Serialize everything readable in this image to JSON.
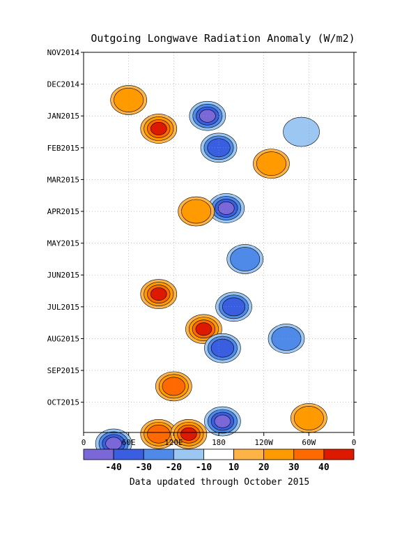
{
  "chart_data": {
    "type": "heatmap",
    "title": "Outgoing Longwave Radiation Anomaly (W/m2)",
    "footer": "Data updated through October 2015",
    "x_ticks": [
      "0",
      "60E",
      "120E",
      "180",
      "120W",
      "60W",
      "0"
    ],
    "y_ticks": [
      "NOV2014",
      "DEC2014",
      "JAN2015",
      "FEB2015",
      "MAR2015",
      "APR2015",
      "MAY2015",
      "JUN2015",
      "JUL2015",
      "AUG2015",
      "SEP2015",
      "OCT2015"
    ],
    "colorbar": {
      "labels": [
        "-40",
        "-30",
        "-20",
        "-10",
        "10",
        "20",
        "30",
        "40"
      ],
      "colors": [
        "#7b68d8",
        "#3a5ee0",
        "#4f8ae8",
        "#9cc7f2",
        "#ffffff",
        "#ffb347",
        "#ff9a00",
        "#ff6a00",
        "#dd1a00"
      ]
    },
    "features": [
      {
        "lon": 100,
        "month": 2.4,
        "value": 40
      },
      {
        "lon": 60,
        "month": 1.5,
        "value": 20
      },
      {
        "lon": 165,
        "month": 2.0,
        "value": -40
      },
      {
        "lon": 180,
        "month": 3.0,
        "value": -30
      },
      {
        "lon": 190,
        "month": 4.9,
        "value": -40
      },
      {
        "lon": 150,
        "month": 5.0,
        "value": 25
      },
      {
        "lon": 100,
        "month": 7.6,
        "value": 40
      },
      {
        "lon": 160,
        "month": 8.7,
        "value": 45
      },
      {
        "lon": 120,
        "month": 10.5,
        "value": 30
      },
      {
        "lon": 100,
        "month": 12.0,
        "value": 35
      },
      {
        "lon": 140,
        "month": 12.0,
        "value": 40
      },
      {
        "lon": 185,
        "month": 11.6,
        "value": -40
      },
      {
        "lon": 185,
        "month": 9.3,
        "value": -30
      },
      {
        "lon": 200,
        "month": 8.0,
        "value": -30
      },
      {
        "lon": 215,
        "month": 6.5,
        "value": -20
      },
      {
        "lon": 270,
        "month": 9.0,
        "value": -20
      },
      {
        "lon": 300,
        "month": 11.5,
        "value": 25
      },
      {
        "lon": 250,
        "month": 3.5,
        "value": 20
      },
      {
        "lon": 290,
        "month": 2.5,
        "value": -15
      },
      {
        "lon": 40,
        "month": 12.3,
        "value": -40
      }
    ]
  }
}
